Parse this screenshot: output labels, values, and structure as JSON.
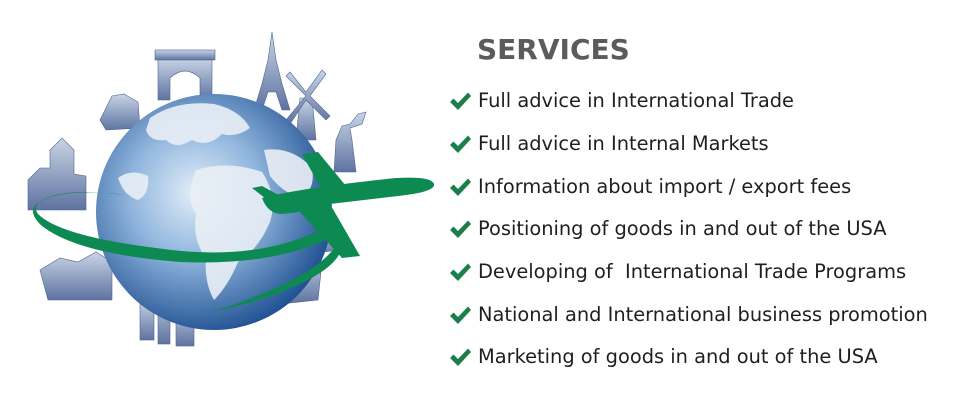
{
  "title": "SERVICES",
  "services": [
    {
      "label": "Full advice in International Trade",
      "icon": "checkmark-icon"
    },
    {
      "label": "Full advice in Internal Markets",
      "icon": "checkmark-icon"
    },
    {
      "label": "Information about import / export fees",
      "icon": "checkmark-icon"
    },
    {
      "label": "Positioning of goods in and out of the USA",
      "icon": "checkmark-icon"
    },
    {
      "label": "Developing of  International Trade Programs",
      "icon": "checkmark-icon"
    },
    {
      "label": "National and International business promotion",
      "icon": "checkmark-icon"
    },
    {
      "label": "Marketing of goods in and out of the USA",
      "icon": "checkmark-icon"
    }
  ],
  "colors": {
    "title": "#5b5b5b",
    "text": "#1f1f1f",
    "check": "#1a7f4a",
    "globe_light": "#cfe1f2",
    "globe_dark": "#1d4e8f",
    "continents": "#e9eff6",
    "plane": "#0d8a52",
    "landmarks": "#6a7fa8"
  },
  "graphic": {
    "icon": "globe-with-airplane-and-landmarks-icon"
  }
}
